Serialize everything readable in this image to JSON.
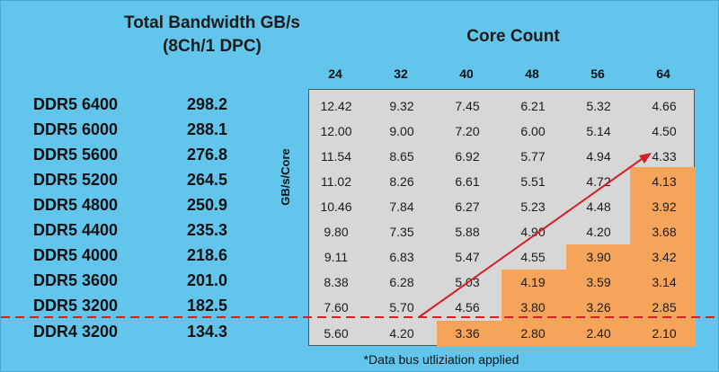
{
  "header": {
    "bandwidth_title": "Total Bandwidth GB/s",
    "bandwidth_subtitle": "(8Ch/1 DPC)",
    "core_count_title": "Core Count",
    "y_axis_label": "GB/s/Core"
  },
  "footnote": "*Data bus utliziation applied",
  "colors": {
    "background": "#62c6ec",
    "table_bg": "#d7d7d7",
    "highlight": "#f6a45a",
    "arrow": "#d41f24",
    "dashed_line": "#d41f24"
  },
  "columns": [
    "24",
    "32",
    "40",
    "48",
    "56",
    "64"
  ],
  "rows": [
    {
      "label": "DDR5 6400",
      "bandwidth": "298.2",
      "values": [
        "12.42",
        "9.32",
        "7.45",
        "6.21",
        "5.32",
        "4.66"
      ]
    },
    {
      "label": "DDR5 6000",
      "bandwidth": "288.1",
      "values": [
        "12.00",
        "9.00",
        "7.20",
        "6.00",
        "5.14",
        "4.50"
      ]
    },
    {
      "label": "DDR5 5600",
      "bandwidth": "276.8",
      "values": [
        "11.54",
        "8.65",
        "6.92",
        "5.77",
        "4.94",
        "4.33"
      ]
    },
    {
      "label": "DDR5 5200",
      "bandwidth": "264.5",
      "values": [
        "11.02",
        "8.26",
        "6.61",
        "5.51",
        "4.72",
        "4.13"
      ]
    },
    {
      "label": "DDR5 4800",
      "bandwidth": "250.9",
      "values": [
        "10.46",
        "7.84",
        "6.27",
        "5.23",
        "4.48",
        "3.92"
      ]
    },
    {
      "label": "DDR5 4400",
      "bandwidth": "235.3",
      "values": [
        "9.80",
        "7.35",
        "5.88",
        "4.90",
        "4.20",
        "3.68"
      ]
    },
    {
      "label": "DDR5 4000",
      "bandwidth": "218.6",
      "values": [
        "9.11",
        "6.83",
        "5.47",
        "4.55",
        "3.90",
        "3.42"
      ]
    },
    {
      "label": "DDR5 3600",
      "bandwidth": "201.0",
      "values": [
        "8.38",
        "6.28",
        "5.03",
        "4.19",
        "3.59",
        "3.14"
      ]
    },
    {
      "label": "DDR5 3200",
      "bandwidth": "182.5",
      "values": [
        "7.60",
        "5.70",
        "4.56",
        "3.80",
        "3.26",
        "2.85"
      ]
    },
    {
      "label": "DDR4 3200",
      "bandwidth": "134.3",
      "values": [
        "5.60",
        "4.20",
        "3.36",
        "2.80",
        "2.40",
        "2.10"
      ]
    }
  ],
  "highlight_start_row_by_column": [
    null,
    null,
    9,
    7,
    6,
    3
  ]
}
